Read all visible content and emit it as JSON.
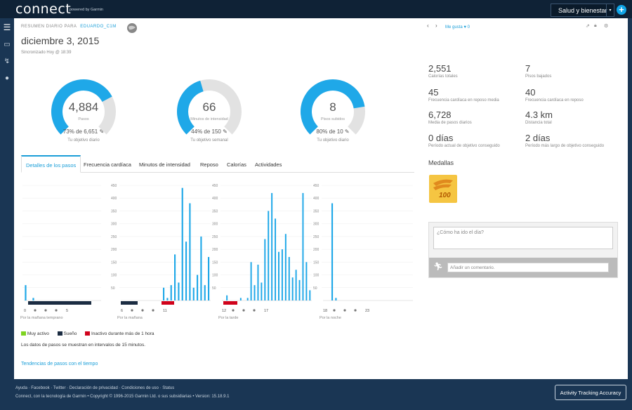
{
  "brand": {
    "logo": "connect",
    "powered": "powered by Garmin"
  },
  "header": {
    "dropdown": "Salud y bienestar",
    "add": "+"
  },
  "summary": {
    "label": "RESUMEN DIARIO PARA",
    "user": "EDUARDO_C1M",
    "date": "diciembre 3, 2015",
    "sync": "Sincronizado Hoy @ 18:39",
    "like": "Me gusta",
    "like_count": "0"
  },
  "donuts": [
    {
      "value": "4,884",
      "sub": "Pasos",
      "goal": "73% de 6,651",
      "goal_label": "Tu objetivo diario",
      "fraction": 0.73
    },
    {
      "value": "66",
      "sub": "Minutos de intensidad",
      "goal": "44% de 150",
      "goal_label": "Tu objetivo semanal",
      "fraction": 0.44
    },
    {
      "value": "8",
      "sub": "Pisos subidos",
      "goal": "80% de 10",
      "goal_label": "Tu objetivo diario",
      "fraction": 0.8
    }
  ],
  "tabs": [
    "Detalles de los pasos",
    "Frecuencia cardíaca",
    "Minutos de intensidad",
    "Reposo",
    "Calorías",
    "Actividades"
  ],
  "stats": [
    {
      "value": "2,551",
      "label": "Calorías totales"
    },
    {
      "value": "7",
      "label": "Pisos bajados"
    },
    {
      "value": "45",
      "label": "Frecuencia cardíaca en reposo media"
    },
    {
      "value": "40",
      "label": "Frecuencia cardíaca en reposo"
    },
    {
      "value": "6,728",
      "label": "Media de pasos diarios"
    },
    {
      "value": "4.3 km",
      "label": "Distancia total"
    },
    {
      "value": "0 días",
      "label": "Período actual de objetivo conseguido"
    },
    {
      "value": "2 días",
      "label": "Período más largo de objetivo conseguido"
    }
  ],
  "medals": {
    "title": "Medallas",
    "badge": "100"
  },
  "comment": {
    "question_placeholder": "¿Cómo ha ido el día?",
    "add_placeholder": "Añadir un comentario."
  },
  "chart_data": [
    {
      "type": "bar",
      "title": "Por la mañana temprano",
      "ylim": [
        0,
        450
      ],
      "x_ticks": [
        "0",
        "5"
      ],
      "values": [
        60,
        0,
        10,
        0,
        0,
        0,
        0,
        0,
        0,
        0,
        0,
        0,
        0,
        0,
        0,
        0,
        0,
        0,
        0,
        0
      ]
    },
    {
      "type": "bar",
      "title": "Por la mañana",
      "ylim": [
        0,
        450
      ],
      "y_ticks": [
        "450",
        "400",
        "350",
        "300",
        "250",
        "200",
        "150",
        "100",
        "50"
      ],
      "x_ticks": [
        "6",
        "11"
      ],
      "values": [
        0,
        0,
        0,
        0,
        0,
        0,
        0,
        0,
        0,
        0,
        0,
        50,
        10,
        60,
        180,
        70,
        440,
        230,
        380,
        50,
        100,
        250,
        60,
        170
      ]
    },
    {
      "type": "bar",
      "title": "Por la tarde",
      "ylim": [
        0,
        450
      ],
      "y_ticks": [
        "450",
        "400",
        "350",
        "300",
        "250",
        "200",
        "150",
        "100",
        "50"
      ],
      "x_ticks": [
        "12",
        "17"
      ],
      "values": [
        0,
        20,
        0,
        0,
        0,
        10,
        0,
        10,
        150,
        60,
        140,
        70,
        240,
        350,
        420,
        320,
        190,
        200,
        260,
        170,
        90,
        120,
        80,
        420,
        150,
        40
      ]
    },
    {
      "type": "bar",
      "title": "Por la noche",
      "ylim": [
        0,
        450
      ],
      "y_ticks": [
        "450",
        "400",
        "350",
        "300",
        "250",
        "200",
        "150",
        "100",
        "50"
      ],
      "x_ticks": [
        "18",
        "23"
      ],
      "values": [
        0,
        0,
        380,
        10,
        0,
        0,
        0,
        0,
        0,
        0,
        0,
        0,
        0,
        0,
        0,
        0,
        0,
        0,
        0,
        0,
        0,
        0,
        0,
        0
      ]
    }
  ],
  "legend": [
    {
      "label": "Muy activo",
      "color": "#7ed321"
    },
    {
      "label": "Sueño",
      "color": "#1b2c42"
    },
    {
      "label": "Inactivo durante más de 1 hora",
      "color": "#d0021b"
    }
  ],
  "note": "Los datos de pasos se muestran en intervalos de 15 minutos.",
  "trend_link": "Tendencias de pasos con el tiempo",
  "footer": {
    "links": "Ayuda · Facebook · Twitter · Declaración de privacidad · Condiciones de uso · Status",
    "copy": "Connect, con la tecnología de Garmin • Copyright © 1996-2015 Garmin Ltd. o sus subsidiarias • Version: 15.18.9.1",
    "ata": "Activity Tracking Accuracy"
  },
  "colors": {
    "accent": "#1a9ed8",
    "donut_fill": "#1fa8e8",
    "donut_bg": "#e2e2e2"
  }
}
